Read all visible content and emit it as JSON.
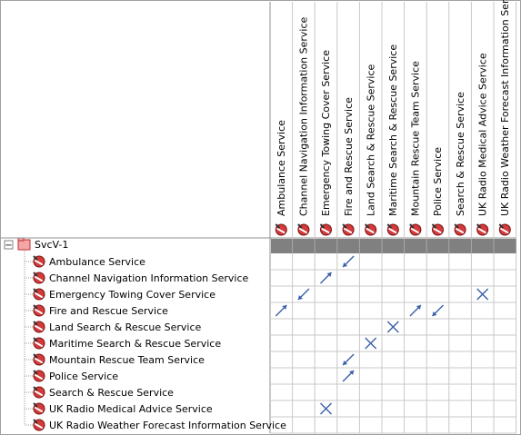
{
  "root": {
    "label": "SvcV-1",
    "expanded": true,
    "toggle_symbol": "−"
  },
  "services": [
    "Ambulance Service",
    "Channel Navigation Information Service",
    "Emergency Towing Cover Service",
    "Fire and Rescue Service",
    "Land Search & Rescue Service",
    "Maritime Search & Rescue Service",
    "Mountain Rescue Team Service",
    "Police Service",
    "Search & Rescue Service",
    "UK Radio Medical Advice Service",
    "UK Radio Weather Forecast Information Service"
  ],
  "icons": {
    "row": "service-icon",
    "column": "service-icon",
    "root": "folder-icon"
  },
  "colors": {
    "grid": "#c8c8c8",
    "header_bar": "#808080",
    "mark": "#3a5fa8",
    "icon_red": "#d43a3a"
  },
  "cells": [
    {
      "row": 0,
      "col": 3,
      "mark": "arrow-down-left"
    },
    {
      "row": 1,
      "col": 2,
      "mark": "arrow-up-right"
    },
    {
      "row": 2,
      "col": 1,
      "mark": "arrow-down-left"
    },
    {
      "row": 2,
      "col": 9,
      "mark": "cross"
    },
    {
      "row": 3,
      "col": 0,
      "mark": "arrow-up-right"
    },
    {
      "row": 3,
      "col": 6,
      "mark": "arrow-up-right"
    },
    {
      "row": 3,
      "col": 7,
      "mark": "arrow-down-left"
    },
    {
      "row": 4,
      "col": 5,
      "mark": "cross"
    },
    {
      "row": 5,
      "col": 4,
      "mark": "cross"
    },
    {
      "row": 6,
      "col": 3,
      "mark": "arrow-down-left"
    },
    {
      "row": 7,
      "col": 3,
      "mark": "arrow-up-right"
    },
    {
      "row": 9,
      "col": 2,
      "mark": "cross"
    }
  ]
}
